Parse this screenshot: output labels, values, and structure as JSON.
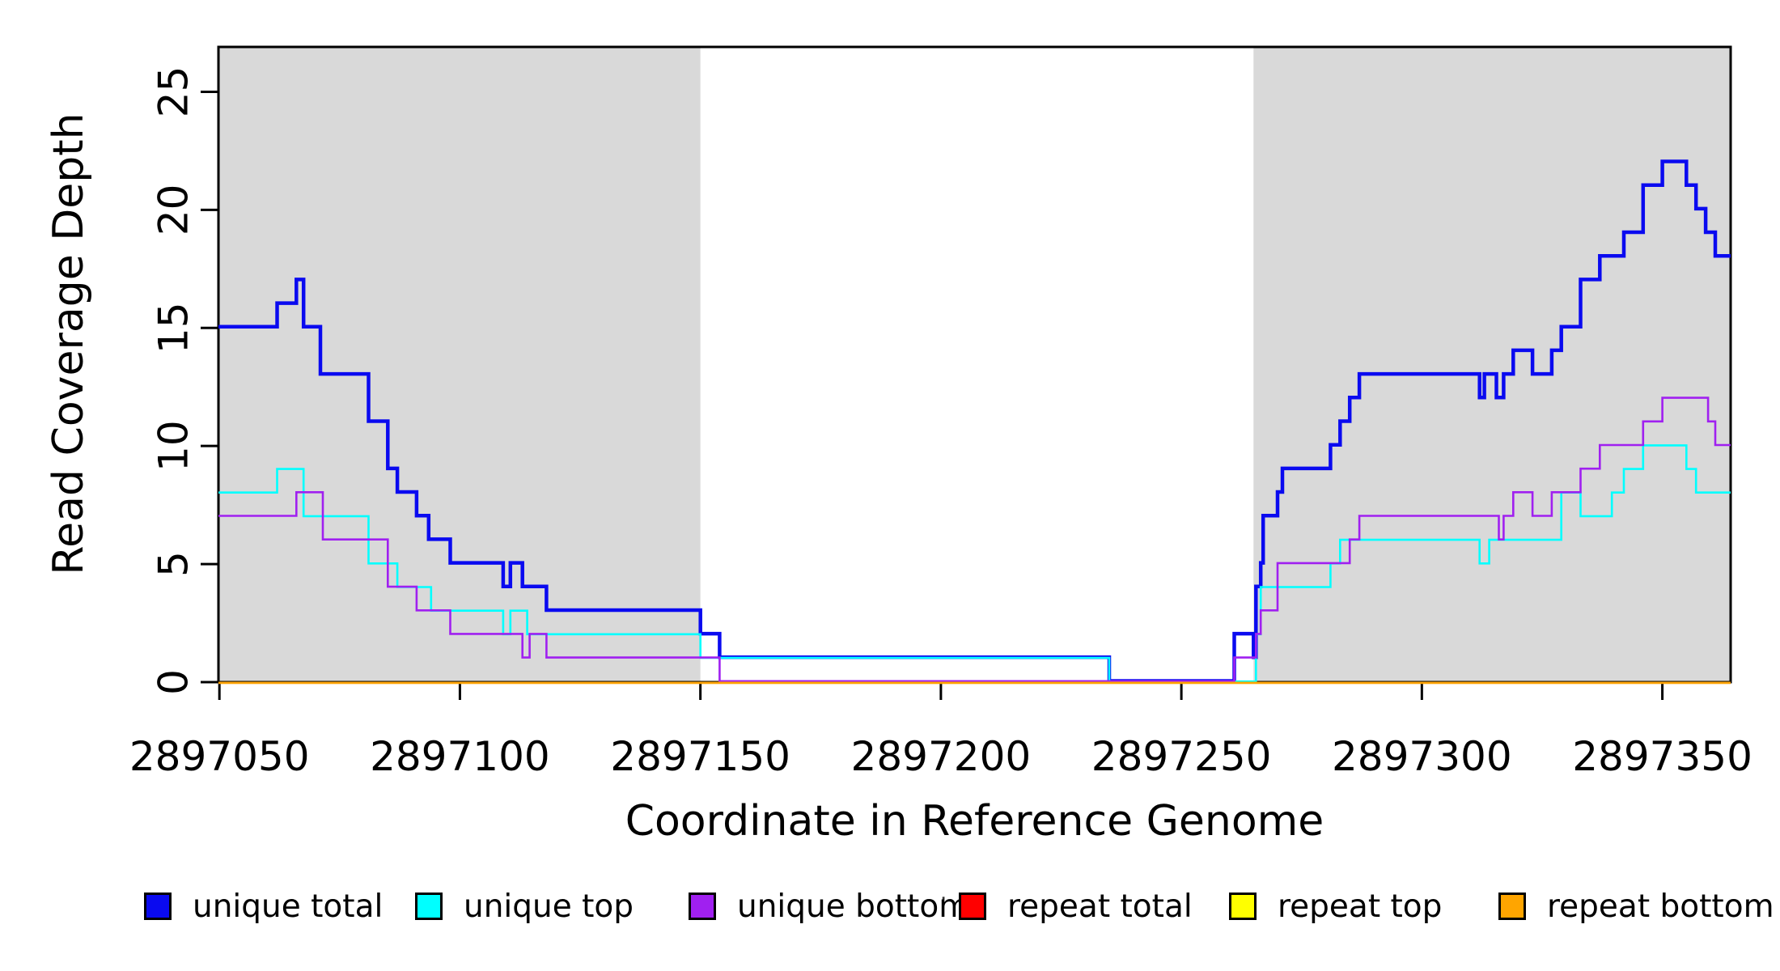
{
  "figure": {
    "background": "#FFFFFF",
    "stray_mark": "·"
  },
  "chart_data": {
    "type": "line",
    "subtype": "step",
    "title": "",
    "xlabel": "Coordinate in Reference Genome",
    "ylabel": "Read Coverage Depth",
    "xlim": [
      2897049.8,
      2897364.2
    ],
    "ylim": [
      0,
      26.9
    ],
    "xticks": [
      2897050,
      2897100,
      2897150,
      2897200,
      2897250,
      2897300,
      2897350
    ],
    "yticks": [
      0,
      5,
      10,
      15,
      20,
      25
    ],
    "grid": false,
    "legend_position": "bottom",
    "plot_background": "#FFFFFF",
    "box_color": "#000000",
    "shaded_regions": [
      {
        "label": "left-shaded-region",
        "x0": 2897049.8,
        "x1": 2897150.0,
        "color": "#D9D9D9"
      },
      {
        "label": "right-shaded-region",
        "x0": 2897265.0,
        "x1": 2897364.2,
        "color": "#D9D9D9"
      }
    ],
    "series": [
      {
        "name": "unique total",
        "color": "#0A0AF0",
        "lw": 4.5,
        "dy": -1.5,
        "points": [
          [
            2897049.8,
            15
          ],
          [
            2897062,
            16
          ],
          [
            2897066,
            17
          ],
          [
            2897067.5,
            15
          ],
          [
            2897071,
            13
          ],
          [
            2897081,
            11
          ],
          [
            2897085,
            9
          ],
          [
            2897087,
            8
          ],
          [
            2897091,
            7
          ],
          [
            2897093.5,
            6
          ],
          [
            2897098,
            5
          ],
          [
            2897109,
            4
          ],
          [
            2897110.5,
            5
          ],
          [
            2897113,
            4
          ],
          [
            2897118,
            3
          ],
          [
            2897150,
            2
          ],
          [
            2897154,
            1
          ],
          [
            2897235,
            0
          ],
          [
            2897261,
            2
          ],
          [
            2897265,
            1
          ],
          [
            2897265.5,
            4
          ],
          [
            2897266.5,
            5
          ],
          [
            2897267,
            7
          ],
          [
            2897270,
            8
          ],
          [
            2897271,
            9
          ],
          [
            2897281,
            10
          ],
          [
            2897283,
            11
          ],
          [
            2897285,
            12
          ],
          [
            2897287,
            13
          ],
          [
            2897312,
            12
          ],
          [
            2897313,
            13
          ],
          [
            2897315.5,
            12
          ],
          [
            2897317,
            13
          ],
          [
            2897319,
            14
          ],
          [
            2897323,
            13
          ],
          [
            2897327,
            14
          ],
          [
            2897329,
            15
          ],
          [
            2897333,
            17
          ],
          [
            2897337,
            18
          ],
          [
            2897342,
            19
          ],
          [
            2897346,
            21
          ],
          [
            2897350,
            22
          ],
          [
            2897355,
            21
          ],
          [
            2897357,
            20
          ],
          [
            2897359,
            19
          ],
          [
            2897361,
            18
          ],
          [
            2897364.2,
            18
          ]
        ]
      },
      {
        "name": "unique top",
        "color": "#00FFFF",
        "lw": 2.6,
        "dy": -0.8,
        "points": [
          [
            2897049.8,
            8
          ],
          [
            2897062,
            9
          ],
          [
            2897067.5,
            7
          ],
          [
            2897081,
            5
          ],
          [
            2897087,
            4
          ],
          [
            2897094,
            3
          ],
          [
            2897109,
            2
          ],
          [
            2897110.5,
            3
          ],
          [
            2897114,
            2
          ],
          [
            2897150,
            1
          ],
          [
            2897235,
            0
          ],
          [
            2897265.5,
            2
          ],
          [
            2897266.5,
            4
          ],
          [
            2897281,
            5
          ],
          [
            2897283,
            6
          ],
          [
            2897312,
            5
          ],
          [
            2897314,
            6
          ],
          [
            2897329,
            8
          ],
          [
            2897333,
            7
          ],
          [
            2897339.5,
            8
          ],
          [
            2897342,
            9
          ],
          [
            2897346,
            10
          ],
          [
            2897355,
            9
          ],
          [
            2897357,
            8
          ],
          [
            2897364.2,
            8
          ]
        ]
      },
      {
        "name": "unique bottom",
        "color": "#A020F0",
        "lw": 2.6,
        "dy": -1.2,
        "points": [
          [
            2897049.8,
            7
          ],
          [
            2897066,
            8
          ],
          [
            2897071.5,
            6
          ],
          [
            2897085,
            4
          ],
          [
            2897091,
            3
          ],
          [
            2897098,
            2
          ],
          [
            2897113,
            1
          ],
          [
            2897114.5,
            2
          ],
          [
            2897118,
            1
          ],
          [
            2897154,
            0
          ],
          [
            2897261,
            1
          ],
          [
            2897265.5,
            2
          ],
          [
            2897266.5,
            3
          ],
          [
            2897270,
            5
          ],
          [
            2897285,
            6
          ],
          [
            2897287,
            7
          ],
          [
            2897316,
            6
          ],
          [
            2897317,
            7
          ],
          [
            2897319,
            8
          ],
          [
            2897323,
            7
          ],
          [
            2897327,
            8
          ],
          [
            2897333,
            9
          ],
          [
            2897337,
            10
          ],
          [
            2897346,
            11
          ],
          [
            2897350,
            12
          ],
          [
            2897359.5,
            11
          ],
          [
            2897361,
            10
          ],
          [
            2897364.2,
            10
          ]
        ]
      },
      {
        "name": "repeat total",
        "color": "#FF0000",
        "lw": 2.6,
        "dy": 0.8,
        "points": [
          [
            2897049.8,
            0
          ],
          [
            2897364.2,
            0
          ]
        ]
      },
      {
        "name": "repeat top",
        "color": "#FFFF00",
        "lw": 2.6,
        "dy": 0.8,
        "points": [
          [
            2897049.8,
            0
          ],
          [
            2897364.2,
            0
          ]
        ]
      },
      {
        "name": "repeat bottom",
        "color": "#FFA500",
        "lw": 2.6,
        "dy": 0.8,
        "points": [
          [
            2897049.8,
            0
          ],
          [
            2897364.2,
            0
          ]
        ]
      }
    ]
  },
  "layout_note": ""
}
